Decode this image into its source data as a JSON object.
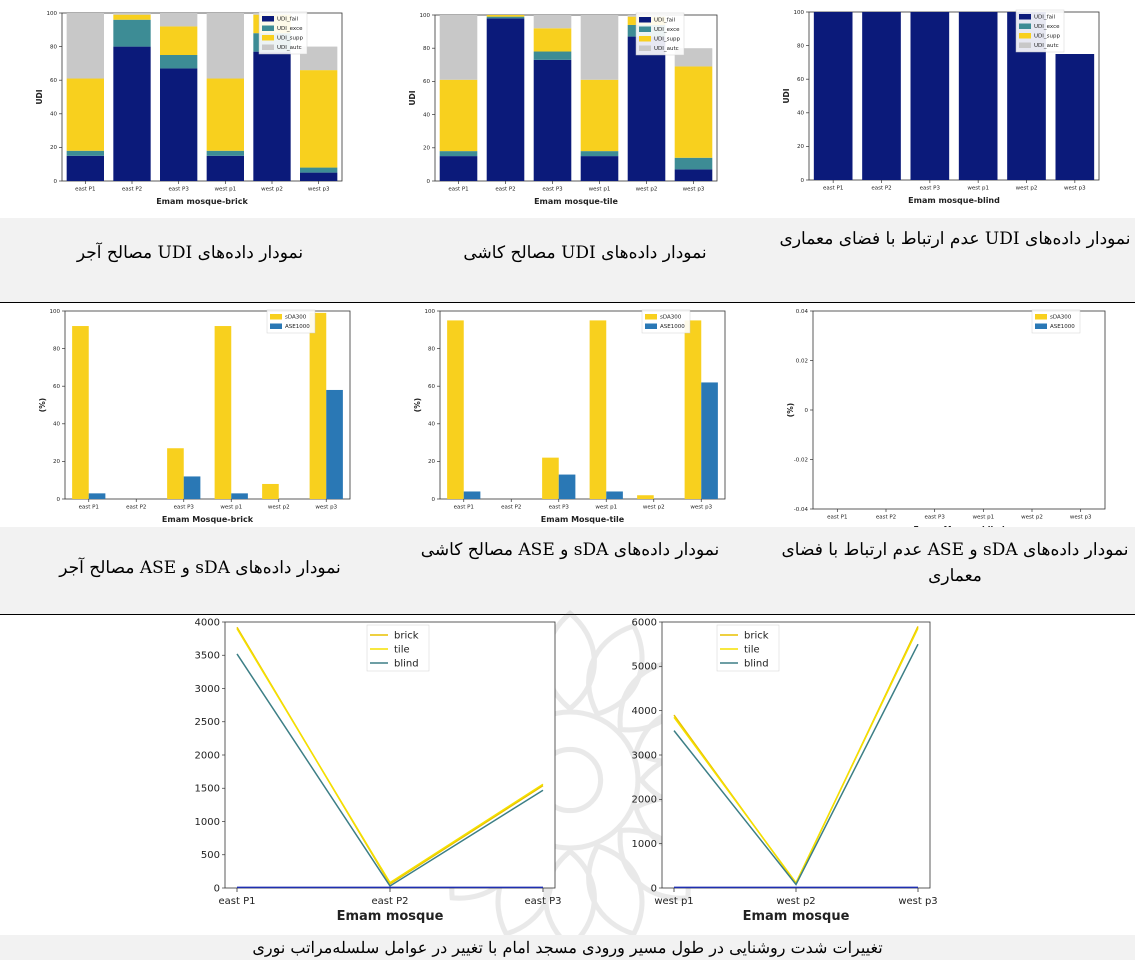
{
  "captions": {
    "row1": [
      "نمودار داده‌های UDI مصالح آجر",
      "نمودار داده‌های UDI مصالح کاشی",
      "نمودار داده‌های UDI عدم ارتباط با فضای معماری"
    ],
    "row2": [
      "نمودار داده‌های sDA و ASE مصالح آجر",
      "نمودار داده‌های sDA و ASE مصالح کاشی",
      "نمودار داده‌های sDA و ASE عدم ارتباط با فضای معماری"
    ],
    "bottom": "تغییرات شدت روشنایی در طول مسیر ورودی مسجد امام با تغییر در عوامل سلسله‌مراتب نوری"
  },
  "colors": {
    "navy": "#0b1a7a",
    "teal": "#3d8c95",
    "yellow": "#f8d01e",
    "gray": "#c8c8c8",
    "blue": "#2a78b5",
    "line_brick": "#e8c100",
    "line_tile": "#f5e000",
    "line_blind": "#3d7f86",
    "flat": "#1f2fb0"
  },
  "chart_data": [
    {
      "id": "udi-brick",
      "type": "bar",
      "stacked": true,
      "xlabel": "Emam mosque-brick",
      "ylabel": "UDI",
      "ylim": [
        0,
        100
      ],
      "yticks": [
        0,
        20,
        40,
        60,
        80,
        100
      ],
      "categories": [
        "east P1",
        "east P2",
        "east P3",
        "west p1",
        "west p2",
        "west p3"
      ],
      "series": [
        {
          "name": "UDI_fail",
          "color": "navy",
          "values": [
            15,
            80,
            67,
            15,
            77,
            5
          ]
        },
        {
          "name": "UDI_exce",
          "color": "teal",
          "values": [
            3,
            16,
            8,
            3,
            11,
            3
          ]
        },
        {
          "name": "UDI_supp",
          "color": "yellow",
          "values": [
            43,
            3,
            17,
            43,
            11,
            58
          ]
        },
        {
          "name": "UDI_autc",
          "color": "gray",
          "values": [
            39,
            1,
            8,
            39,
            1,
            14
          ]
        }
      ]
    },
    {
      "id": "udi-tile",
      "type": "bar",
      "stacked": true,
      "xlabel": "Emam mosque-tile",
      "ylabel": "UDI",
      "ylim": [
        0,
        100
      ],
      "yticks": [
        0,
        20,
        40,
        60,
        80,
        100
      ],
      "categories": [
        "east P1",
        "east P2",
        "east P3",
        "west p1",
        "west p2",
        "west p3"
      ],
      "series": [
        {
          "name": "UDI_fail",
          "color": "navy",
          "values": [
            15,
            98,
            73,
            15,
            87,
            7
          ]
        },
        {
          "name": "UDI_exce",
          "color": "teal",
          "values": [
            3,
            1,
            5,
            3,
            7,
            7
          ]
        },
        {
          "name": "UDI_supp",
          "color": "yellow",
          "values": [
            43,
            1,
            14,
            43,
            5,
            55
          ]
        },
        {
          "name": "UDI_autc",
          "color": "gray",
          "values": [
            39,
            0,
            8,
            39,
            1,
            11
          ]
        }
      ]
    },
    {
      "id": "udi-blind",
      "type": "bar",
      "stacked": true,
      "xlabel": "Emam mosque-blind",
      "ylabel": "UDI",
      "ylim": [
        0,
        100
      ],
      "yticks": [
        0,
        20,
        40,
        60,
        80,
        100
      ],
      "categories": [
        "east P1",
        "east P2",
        "east P3",
        "west p1",
        "west p2",
        "west p3"
      ],
      "series": [
        {
          "name": "UDI_fail",
          "color": "navy",
          "values": [
            100,
            100,
            100,
            100,
            100,
            75
          ]
        },
        {
          "name": "UDI_exce",
          "color": "teal",
          "values": [
            0,
            0,
            0,
            0,
            0,
            0
          ]
        },
        {
          "name": "UDI_supp",
          "color": "yellow",
          "values": [
            0,
            0,
            0,
            0,
            0,
            0
          ]
        },
        {
          "name": "UDI_autc",
          "color": "gray",
          "values": [
            0,
            0,
            0,
            0,
            0,
            0
          ]
        }
      ]
    },
    {
      "id": "sda-brick",
      "type": "bar",
      "stacked": false,
      "xlabel": "Emam Mosque-brick",
      "ylabel": "(%)",
      "ylim": [
        0,
        100
      ],
      "yticks": [
        0,
        20,
        40,
        60,
        80,
        100
      ],
      "categories": [
        "east P1",
        "east P2",
        "east P3",
        "west p1",
        "west p2",
        "west p3"
      ],
      "series": [
        {
          "name": "sDA300",
          "color": "yellow",
          "values": [
            92,
            0,
            27,
            92,
            8,
            99
          ]
        },
        {
          "name": "ASE1000",
          "color": "blue",
          "values": [
            3,
            0,
            12,
            3,
            0,
            58
          ]
        }
      ]
    },
    {
      "id": "sda-tile",
      "type": "bar",
      "stacked": false,
      "xlabel": "Emam Mosque-tile",
      "ylabel": "(%)",
      "ylim": [
        0,
        100
      ],
      "yticks": [
        0,
        20,
        40,
        60,
        80,
        100
      ],
      "categories": [
        "east P1",
        "east P2",
        "east P3",
        "west p1",
        "west p2",
        "west p3"
      ],
      "series": [
        {
          "name": "sDA300",
          "color": "yellow",
          "values": [
            95,
            0,
            22,
            95,
            2,
            95
          ]
        },
        {
          "name": "ASE1000",
          "color": "blue",
          "values": [
            4,
            0,
            13,
            4,
            0,
            62
          ]
        }
      ]
    },
    {
      "id": "sda-blind",
      "type": "bar",
      "stacked": false,
      "xlabel": "Emam Mosque-blind",
      "ylabel": "(%)",
      "ylim": [
        -0.04,
        0.04
      ],
      "yticks": [
        -0.04,
        -0.02,
        0.0,
        0.02,
        0.04
      ],
      "categories": [
        "east P1",
        "east P2",
        "east P3",
        "west p1",
        "west p2",
        "west p3"
      ],
      "series": [
        {
          "name": "sDA300",
          "color": "yellow",
          "values": [
            0,
            0,
            0,
            0,
            0,
            0
          ]
        },
        {
          "name": "ASE1000",
          "color": "blue",
          "values": [
            0,
            0,
            0,
            0,
            0,
            0
          ]
        }
      ]
    },
    {
      "id": "line-east",
      "type": "line",
      "xlabel": "Emam mosque",
      "ylabel": "",
      "ylim": [
        0,
        4000
      ],
      "yticks": [
        0,
        500,
        1000,
        1500,
        2000,
        2500,
        3000,
        3500,
        4000
      ],
      "categories": [
        "east P1",
        "east P2",
        "east P3"
      ],
      "series": [
        {
          "name": "brick",
          "color": "line_brick",
          "values": [
            3920,
            60,
            1540
          ]
        },
        {
          "name": "tile",
          "color": "line_tile",
          "values": [
            3900,
            80,
            1560
          ]
        },
        {
          "name": "blind",
          "color": "line_blind",
          "values": [
            3520,
            30,
            1470
          ]
        },
        {
          "name": "",
          "color": "flat",
          "values": [
            10,
            10,
            10
          ]
        }
      ]
    },
    {
      "id": "line-west",
      "type": "line",
      "xlabel": "Emam mosque",
      "ylabel": "",
      "ylim": [
        0,
        6000
      ],
      "yticks": [
        0,
        1000,
        2000,
        3000,
        4000,
        5000,
        6000
      ],
      "categories": [
        "west p1",
        "west p2",
        "west p3"
      ],
      "series": [
        {
          "name": "brick",
          "color": "line_brick",
          "values": [
            3900,
            100,
            5900
          ]
        },
        {
          "name": "tile",
          "color": "line_tile",
          "values": [
            3850,
            120,
            5860
          ]
        },
        {
          "name": "blind",
          "color": "line_blind",
          "values": [
            3550,
            80,
            5500
          ]
        },
        {
          "name": "",
          "color": "flat",
          "values": [
            15,
            15,
            15
          ]
        }
      ]
    }
  ]
}
